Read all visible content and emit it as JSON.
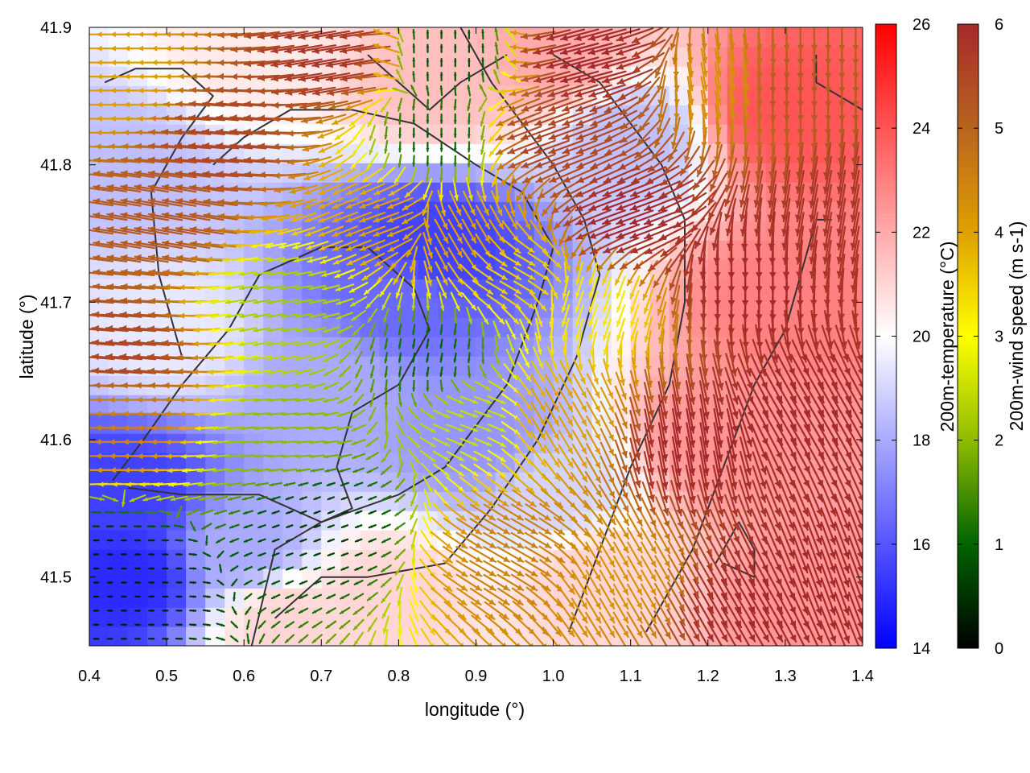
{
  "chart_data": {
    "type": "heatmap",
    "title": "",
    "xlabel": "longitude (°)",
    "ylabel": "latitude (°)",
    "xlim": [
      0.4,
      1.4
    ],
    "ylim": [
      41.45,
      41.9
    ],
    "x_ticks": [
      "0.4",
      "0.5",
      "0.6",
      "0.7",
      "0.8",
      "0.9",
      "1.0",
      "1.1",
      "1.2",
      "1.3",
      "1.4"
    ],
    "y_ticks": [
      "41.5",
      "41.6",
      "41.7",
      "41.8",
      "41.9"
    ],
    "background_field": {
      "name": "200m-temperature",
      "label": "200m-temperature (°C)",
      "range": [
        14,
        26
      ],
      "ticks": [
        "14",
        "16",
        "18",
        "20",
        "22",
        "24",
        "26"
      ],
      "colors": [
        "#0000ff",
        "#ffffff",
        "#ff0000"
      ],
      "regions": [
        {
          "lon": 0.45,
          "lat": 41.5,
          "value": 15.0
        },
        {
          "lon": 0.45,
          "lat": 41.56,
          "value": 15.5
        },
        {
          "lon": 0.6,
          "lat": 41.52,
          "value": 18.0
        },
        {
          "lon": 0.8,
          "lat": 41.7,
          "value": 16.5
        },
        {
          "lon": 0.85,
          "lat": 41.74,
          "value": 15.5
        },
        {
          "lon": 0.9,
          "lat": 41.6,
          "value": 17.5
        },
        {
          "lon": 0.72,
          "lat": 41.64,
          "value": 18.0
        },
        {
          "lon": 0.78,
          "lat": 41.49,
          "value": 21.0
        },
        {
          "lon": 0.65,
          "lat": 41.47,
          "value": 21.0
        },
        {
          "lon": 0.45,
          "lat": 41.8,
          "value": 18.5
        },
        {
          "lon": 0.5,
          "lat": 41.68,
          "value": 19.5
        },
        {
          "lon": 0.85,
          "lat": 41.86,
          "value": 21.5
        },
        {
          "lon": 0.6,
          "lat": 41.88,
          "value": 20.5
        },
        {
          "lon": 1.0,
          "lat": 41.88,
          "value": 22.0
        },
        {
          "lon": 1.1,
          "lat": 41.82,
          "value": 18.5
        },
        {
          "lon": 1.0,
          "lat": 41.56,
          "value": 19.0
        },
        {
          "lon": 1.05,
          "lat": 41.5,
          "value": 21.0
        },
        {
          "lon": 1.22,
          "lat": 41.6,
          "value": 22.5
        },
        {
          "lon": 1.3,
          "lat": 41.7,
          "value": 23.0
        },
        {
          "lon": 1.3,
          "lat": 41.84,
          "value": 24.0
        },
        {
          "lon": 1.34,
          "lat": 41.48,
          "value": 22.5
        }
      ]
    },
    "vector_field": {
      "name": "200m-wind speed",
      "label": "200m-wind speed (m s-1)",
      "range": [
        0,
        6
      ],
      "ticks": [
        "0",
        "1",
        "2",
        "3",
        "4",
        "5",
        "6"
      ],
      "colors": [
        "#000000",
        "#006400",
        "#8fbc00",
        "#ffff00",
        "#e0a000",
        "#b8641e",
        "#a52a2a"
      ],
      "regions": [
        {
          "lon": 0.43,
          "lat": 41.5,
          "speed": 0.3,
          "dir_deg": 0
        },
        {
          "lon": 0.7,
          "lat": 41.54,
          "speed": 0.6,
          "dir_deg": 200
        },
        {
          "lon": 0.85,
          "lat": 41.66,
          "speed": 1.0,
          "dir_deg": 260
        },
        {
          "lon": 0.85,
          "lat": 41.82,
          "speed": 1.0,
          "dir_deg": 270
        },
        {
          "lon": 0.86,
          "lat": 41.88,
          "speed": 0.8,
          "dir_deg": 90
        },
        {
          "lon": 0.65,
          "lat": 41.6,
          "speed": 2.0,
          "dir_deg": 185
        },
        {
          "lon": 0.65,
          "lat": 41.7,
          "speed": 2.2,
          "dir_deg": 190
        },
        {
          "lon": 0.45,
          "lat": 41.62,
          "speed": 4.5,
          "dir_deg": 180
        },
        {
          "lon": 0.45,
          "lat": 41.66,
          "speed": 5.5,
          "dir_deg": 175
        },
        {
          "lon": 0.5,
          "lat": 41.76,
          "speed": 5.2,
          "dir_deg": 170
        },
        {
          "lon": 0.45,
          "lat": 41.86,
          "speed": 4.0,
          "dir_deg": 180
        },
        {
          "lon": 0.58,
          "lat": 41.82,
          "speed": 5.5,
          "dir_deg": 175
        },
        {
          "lon": 0.72,
          "lat": 41.88,
          "speed": 5.8,
          "dir_deg": 190
        },
        {
          "lon": 0.78,
          "lat": 41.76,
          "speed": 4.0,
          "dir_deg": 200
        },
        {
          "lon": 0.88,
          "lat": 41.75,
          "speed": 4.0,
          "dir_deg": 300
        },
        {
          "lon": 0.95,
          "lat": 41.72,
          "speed": 3.5,
          "dir_deg": 330
        },
        {
          "lon": 0.9,
          "lat": 41.62,
          "speed": 2.5,
          "dir_deg": 340
        },
        {
          "lon": 1.0,
          "lat": 41.82,
          "speed": 5.5,
          "dir_deg": 200
        },
        {
          "lon": 1.05,
          "lat": 41.88,
          "speed": 6.0,
          "dir_deg": 195
        },
        {
          "lon": 1.1,
          "lat": 41.76,
          "speed": 6.0,
          "dir_deg": 200
        },
        {
          "lon": 1.05,
          "lat": 41.7,
          "speed": 3.2,
          "dir_deg": 250
        },
        {
          "lon": 1.0,
          "lat": 41.62,
          "speed": 4.0,
          "dir_deg": 300
        },
        {
          "lon": 0.95,
          "lat": 41.52,
          "speed": 4.5,
          "dir_deg": 330
        },
        {
          "lon": 1.08,
          "lat": 41.5,
          "speed": 4.2,
          "dir_deg": 300
        },
        {
          "lon": 1.18,
          "lat": 41.6,
          "speed": 6.0,
          "dir_deg": 280
        },
        {
          "lon": 1.25,
          "lat": 41.72,
          "speed": 6.0,
          "dir_deg": 270
        },
        {
          "lon": 1.32,
          "lat": 41.62,
          "speed": 6.0,
          "dir_deg": 300
        },
        {
          "lon": 1.22,
          "lat": 41.86,
          "speed": 4.2,
          "dir_deg": 280
        },
        {
          "lon": 1.3,
          "lat": 41.86,
          "speed": 5.2,
          "dir_deg": 270
        },
        {
          "lon": 1.36,
          "lat": 41.76,
          "speed": 5.8,
          "dir_deg": 260
        },
        {
          "lon": 1.36,
          "lat": 41.5,
          "speed": 6.0,
          "dir_deg": 290
        },
        {
          "lon": 1.25,
          "lat": 41.48,
          "speed": 6.0,
          "dir_deg": 300
        }
      ]
    },
    "contour_color": "#333333",
    "grid": false,
    "legend": "none"
  }
}
